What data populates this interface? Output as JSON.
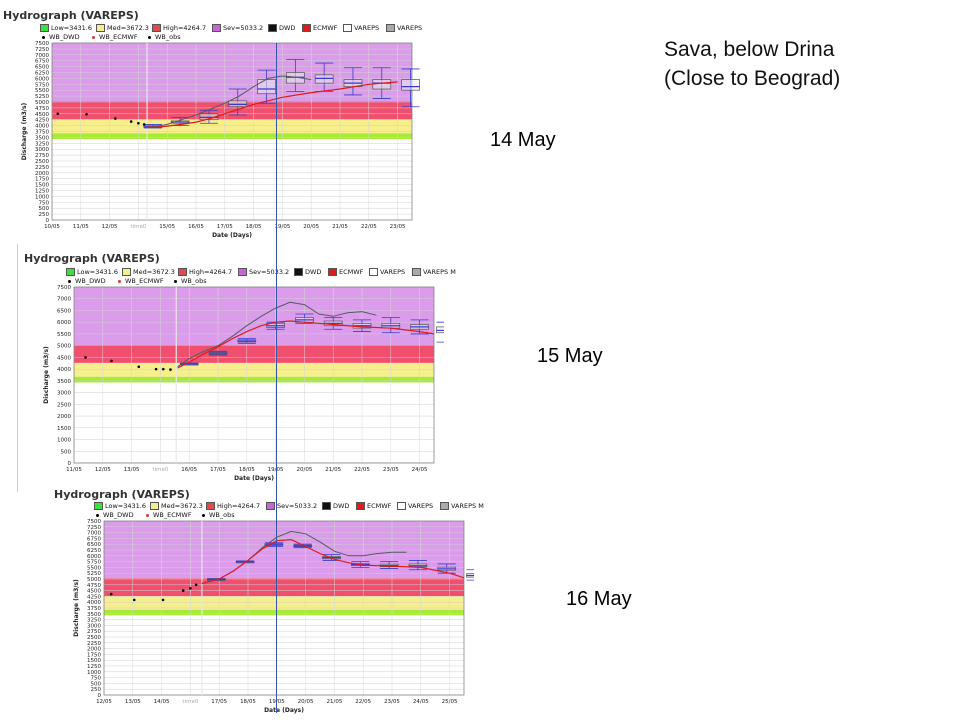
{
  "slide": {
    "location_line1": "Sava, below Drina",
    "location_line2": "(Close to Beograd)"
  },
  "colors": {
    "severe_band": "#dc9cec",
    "high_band": "#f0506e",
    "medium_band": "#f6ef8c",
    "low_band": "#a8ea38",
    "ensemble_box": "#3a3ad0",
    "dwd_line": "#222222",
    "ecmwf_line": "#dd1c1c",
    "marker_line": "#2f4fa8"
  },
  "chart_data": [
    {
      "type": "line",
      "panel": "14 May",
      "title": "Hydrograph (VAREPS)",
      "legend": [
        "Low=3431.6",
        "Med=3672.3",
        "High=4264.7",
        "Sev=5033.2",
        "DWD",
        "ECMWF",
        "VAREPS",
        "VAREPS"
      ],
      "legend_row2": [
        "WB_DWD",
        "WB_ECMWF",
        "WB_obs"
      ],
      "thresholds": {
        "low": 3431.6,
        "med": 3672.3,
        "high": 4264.7,
        "sev": 5033.2
      },
      "xlabel": "Date (Days)",
      "ylabel": "Discharge (m3/s)",
      "x_ticks": [
        "10/05",
        "11/05",
        "12/05",
        "time0",
        "15/05",
        "16/05",
        "17/05",
        "18/05",
        "19/05",
        "20/05",
        "21/05",
        "22/05",
        "23/05"
      ],
      "x_range": [
        0,
        12.5
      ],
      "ylim": [
        0,
        7500
      ],
      "y_ticks": [
        0,
        250,
        500,
        750,
        1000,
        1250,
        1500,
        1750,
        2000,
        2250,
        2500,
        2750,
        3000,
        3250,
        3500,
        3750,
        4000,
        4250,
        4500,
        4750,
        5000,
        5250,
        5500,
        5750,
        6000,
        6250,
        6500,
        6750,
        7000,
        7250,
        7500
      ],
      "time0": 3.3,
      "observed": {
        "x": [
          0.2,
          1.2,
          2.2,
          2.75,
          3.0,
          3.2
        ],
        "y": [
          4500,
          4480,
          4300,
          4170,
          4100,
          4050
        ]
      },
      "dwd": {
        "x": [
          3.3,
          3.6,
          4.0,
          4.5,
          5.0,
          5.5,
          6.0,
          6.5,
          7.0,
          7.5,
          8.0,
          8.5,
          9.0
        ],
        "y": [
          3950,
          3960,
          4050,
          4250,
          4450,
          4700,
          4950,
          5250,
          5650,
          6000,
          6100,
          6050,
          5950
        ]
      },
      "ecmwf": {
        "x": [
          3.3,
          3.6,
          4.0,
          4.5,
          5.0,
          5.5,
          6.0,
          6.5,
          7.0,
          7.5,
          8.0,
          9.0,
          10.0,
          11.0,
          12.0
        ],
        "y": [
          3950,
          3920,
          3980,
          4050,
          4150,
          4300,
          4500,
          4700,
          4900,
          5050,
          5200,
          5400,
          5550,
          5750,
          5850
        ]
      },
      "boxes": [
        {
          "x": 3.5,
          "min": 3900,
          "q1": 3920,
          "med": 3950,
          "q3": 4000,
          "max": 4050
        },
        {
          "x": 4.45,
          "min": 4000,
          "q1": 4100,
          "med": 4150,
          "q3": 4200,
          "max": 4350
        },
        {
          "x": 5.45,
          "min": 4100,
          "q1": 4250,
          "med": 4350,
          "q3": 4500,
          "max": 4650
        },
        {
          "x": 6.45,
          "min": 4450,
          "q1": 4800,
          "med": 4900,
          "q3": 5050,
          "max": 5550
        },
        {
          "x": 7.45,
          "min": 4950,
          "q1": 5350,
          "med": 5550,
          "q3": 5950,
          "max": 6350
        },
        {
          "x": 8.45,
          "min": 5450,
          "q1": 5800,
          "med": 6050,
          "q3": 6250,
          "max": 6800
        },
        {
          "x": 9.45,
          "min": 5450,
          "q1": 5800,
          "med": 6000,
          "q3": 6150,
          "max": 6650
        },
        {
          "x": 10.45,
          "min": 5300,
          "q1": 5650,
          "med": 5800,
          "q3": 5950,
          "max": 6450
        },
        {
          "x": 11.45,
          "min": 5150,
          "q1": 5550,
          "med": 5800,
          "q3": 5950,
          "max": 6450
        },
        {
          "x": 12.45,
          "min": 4800,
          "q1": 5500,
          "med": 5650,
          "q3": 5950,
          "max": 6400
        }
      ]
    },
    {
      "type": "line",
      "panel": "15 May",
      "title": "Hydrograph (VAREPS)",
      "legend": [
        "Low=3431.6",
        "Med=3672.3",
        "High=4264.7",
        "Sev=5033.2",
        "DWD",
        "ECMWF",
        "VAREPS",
        "VAREPS M"
      ],
      "legend_row2": [
        "WB_DWD",
        "WB_ECMWF",
        "WB_obs"
      ],
      "thresholds": {
        "low": 3431.6,
        "med": 3672.3,
        "high": 4264.7,
        "sev": 5033.2
      },
      "xlabel": "Date (Days)",
      "ylabel": "Discharge (m3/s)",
      "x_ticks": [
        "11/05",
        "12/05",
        "13/05",
        "time0",
        "16/05",
        "17/05",
        "18/05",
        "19/05",
        "20/05",
        "21/05",
        "22/05",
        "23/05",
        "24/05"
      ],
      "x_range": [
        0,
        12.5
      ],
      "ylim": [
        0,
        7500
      ],
      "y_ticks": [
        0,
        500,
        1000,
        1500,
        2000,
        2500,
        3000,
        3500,
        4000,
        4500,
        5000,
        5500,
        6000,
        6500,
        7000,
        7500
      ],
      "time0": 3.55,
      "observed": {
        "x": [
          0.4,
          1.3,
          2.25,
          2.85,
          3.1,
          3.35
        ],
        "y": [
          4500,
          4350,
          4100,
          4000,
          4000,
          3980
        ]
      },
      "dwd": {
        "x": [
          3.6,
          4.0,
          4.5,
          5.0,
          5.5,
          6.0,
          6.5,
          7.0,
          7.5,
          8.0,
          8.5,
          9.0,
          9.5,
          10.0,
          10.5
        ],
        "y": [
          4100,
          4450,
          4750,
          5000,
          5400,
          5850,
          6250,
          6600,
          6850,
          6750,
          6350,
          6250,
          6400,
          6450,
          6300
        ]
      },
      "ecmwf": {
        "x": [
          3.6,
          4.0,
          4.5,
          5.0,
          5.5,
          6.0,
          6.5,
          7.0,
          7.5,
          8.0,
          9.0,
          10.0,
          11.0,
          12.0,
          12.5
        ],
        "y": [
          4050,
          4300,
          4650,
          4950,
          5300,
          5600,
          5850,
          6000,
          6050,
          6000,
          5900,
          5800,
          5750,
          5600,
          5500
        ]
      },
      "boxes": [
        {
          "x": 4.0,
          "min": 4180,
          "q1": 4200,
          "med": 4220,
          "q3": 4240,
          "max": 4260
        },
        {
          "x": 5.0,
          "min": 4600,
          "q1": 4640,
          "med": 4680,
          "q3": 4720,
          "max": 4760
        },
        {
          "x": 6.0,
          "min": 5100,
          "q1": 5160,
          "med": 5200,
          "q3": 5250,
          "max": 5300
        },
        {
          "x": 7.0,
          "min": 5700,
          "q1": 5780,
          "med": 5850,
          "q3": 5950,
          "max": 6000
        },
        {
          "x": 8.0,
          "min": 5950,
          "q1": 6000,
          "med": 6100,
          "q3": 6200,
          "max": 6350
        },
        {
          "x": 9.0,
          "min": 5700,
          "q1": 5850,
          "med": 5950,
          "q3": 6050,
          "max": 6200
        },
        {
          "x": 10.0,
          "min": 5600,
          "q1": 5750,
          "med": 5850,
          "q3": 5950,
          "max": 6100
        },
        {
          "x": 11.0,
          "min": 5550,
          "q1": 5750,
          "med": 5850,
          "q3": 5950,
          "max": 6200
        },
        {
          "x": 12.0,
          "min": 5500,
          "q1": 5700,
          "med": 5800,
          "q3": 5900,
          "max": 6100
        },
        {
          "x": 12.9,
          "min": 5150,
          "q1": 5550,
          "med": 5650,
          "q3": 5800,
          "max": 6000
        }
      ]
    },
    {
      "type": "line",
      "panel": "16 May",
      "title": "Hydrograph (VAREPS)",
      "legend": [
        "Low=3431.6",
        "Med=3672.3",
        "High=4264.7",
        "Sev=5033.2",
        "DWD",
        "ECMWF",
        "VAREPS",
        "VAREPS M"
      ],
      "legend_row2": [
        "WB_DWD",
        "WB_ECMWF",
        "WB_obs"
      ],
      "thresholds": {
        "low": 3431.6,
        "med": 3672.3,
        "high": 4264.7,
        "sev": 5033.2
      },
      "xlabel": "Date (Days)",
      "ylabel": "Discharge (m3/s)",
      "x_ticks": [
        "12/05",
        "13/05",
        "14/05",
        "time0",
        "17/05",
        "18/05",
        "19/05",
        "20/05",
        "21/05",
        "22/05",
        "23/05",
        "24/05",
        "25/05"
      ],
      "x_range": [
        0,
        12.5
      ],
      "ylim": [
        0,
        7500
      ],
      "y_ticks": [
        0,
        250,
        500,
        750,
        1000,
        1250,
        1500,
        1750,
        2000,
        2250,
        2500,
        2750,
        3000,
        3250,
        3500,
        3750,
        4000,
        4250,
        4500,
        4750,
        5000,
        5250,
        5500,
        5750,
        6000,
        6250,
        6500,
        6750,
        7000,
        7250,
        7500
      ],
      "time0": 3.4,
      "observed": {
        "x": [
          0.25,
          1.05,
          2.05,
          2.75,
          3.0,
          3.2
        ],
        "y": [
          4350,
          4100,
          4100,
          4500,
          4600,
          4750
        ]
      },
      "dwd": {
        "x": [
          3.4,
          4.0,
          4.5,
          5.0,
          5.5,
          6.0,
          6.5,
          7.0,
          7.5,
          8.0,
          8.5,
          9.0,
          9.5,
          10.0,
          10.5
        ],
        "y": [
          4800,
          5000,
          5350,
          5800,
          6350,
          6800,
          7050,
          6950,
          6600,
          6200,
          6000,
          6000,
          6100,
          6150,
          6150
        ]
      },
      "ecmwf": {
        "x": [
          3.4,
          4.0,
          4.5,
          5.0,
          5.5,
          6.0,
          6.5,
          7.0,
          7.5,
          8.0,
          8.5,
          9.0,
          10.0,
          11.0,
          12.0,
          12.5
        ],
        "y": [
          4800,
          5000,
          5350,
          5800,
          6300,
          6650,
          6700,
          6400,
          6100,
          5850,
          5700,
          5600,
          5550,
          5500,
          5250,
          5050
        ]
      },
      "boxes": [
        {
          "x": 3.9,
          "min": 4940,
          "q1": 4960,
          "med": 4980,
          "q3": 5000,
          "max": 5020
        },
        {
          "x": 4.9,
          "min": 5700,
          "q1": 5720,
          "med": 5740,
          "q3": 5760,
          "max": 5780
        },
        {
          "x": 5.9,
          "min": 6400,
          "q1": 6440,
          "med": 6480,
          "q3": 6520,
          "max": 6560
        },
        {
          "x": 6.9,
          "min": 6350,
          "q1": 6400,
          "med": 6420,
          "q3": 6460,
          "max": 6500
        },
        {
          "x": 7.9,
          "min": 5800,
          "q1": 5870,
          "med": 5920,
          "q3": 5970,
          "max": 6050
        },
        {
          "x": 8.9,
          "min": 5500,
          "q1": 5580,
          "med": 5620,
          "q3": 5670,
          "max": 5750
        },
        {
          "x": 9.9,
          "min": 5450,
          "q1": 5530,
          "med": 5580,
          "q3": 5640,
          "max": 5750
        },
        {
          "x": 10.9,
          "min": 5400,
          "q1": 5520,
          "med": 5570,
          "q3": 5650,
          "max": 5800
        },
        {
          "x": 11.9,
          "min": 5250,
          "q1": 5380,
          "med": 5440,
          "q3": 5510,
          "max": 5650
        },
        {
          "x": 12.9,
          "min": 4950,
          "q1": 5080,
          "med": 5150,
          "q3": 5230,
          "max": 5400
        }
      ]
    }
  ]
}
